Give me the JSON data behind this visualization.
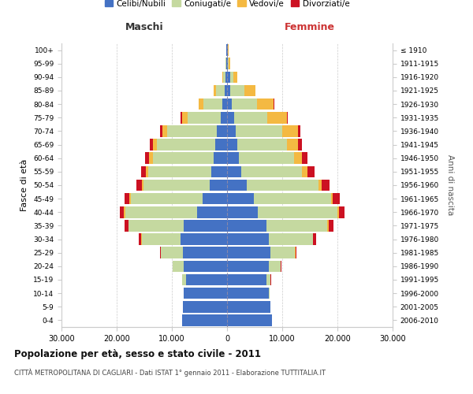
{
  "age_groups": [
    "0-4",
    "5-9",
    "10-14",
    "15-19",
    "20-24",
    "25-29",
    "30-34",
    "35-39",
    "40-44",
    "45-49",
    "50-54",
    "55-59",
    "60-64",
    "65-69",
    "70-74",
    "75-79",
    "80-84",
    "85-89",
    "90-94",
    "95-99",
    "100+"
  ],
  "birth_years": [
    "2006-2010",
    "2001-2005",
    "1996-2000",
    "1991-1995",
    "1986-1990",
    "1981-1985",
    "1976-1980",
    "1971-1975",
    "1966-1970",
    "1961-1965",
    "1956-1960",
    "1951-1955",
    "1946-1950",
    "1941-1945",
    "1936-1940",
    "1931-1935",
    "1926-1930",
    "1921-1925",
    "1916-1920",
    "1911-1915",
    "≤ 1910"
  ],
  "males": {
    "celibe": [
      8200,
      8000,
      7800,
      7500,
      7800,
      8000,
      8500,
      7800,
      5500,
      4500,
      3200,
      2800,
      2500,
      2200,
      1800,
      1200,
      800,
      500,
      300,
      150,
      100
    ],
    "coniugato": [
      10,
      30,
      100,
      600,
      2000,
      4000,
      7000,
      10000,
      13000,
      13000,
      12000,
      11500,
      11000,
      10500,
      9000,
      6000,
      3500,
      1500,
      400,
      100,
      50
    ],
    "vedovo": [
      1,
      2,
      5,
      10,
      30,
      50,
      80,
      120,
      150,
      200,
      300,
      400,
      600,
      700,
      900,
      1000,
      800,
      400,
      100,
      30,
      10
    ],
    "divorziato": [
      1,
      2,
      5,
      20,
      60,
      150,
      400,
      700,
      800,
      900,
      950,
      900,
      800,
      600,
      400,
      200,
      100,
      50,
      20,
      10,
      5
    ]
  },
  "females": {
    "nubile": [
      8100,
      7800,
      7500,
      7200,
      7500,
      7800,
      7500,
      7200,
      5500,
      4800,
      3500,
      2600,
      2200,
      1800,
      1500,
      1300,
      900,
      600,
      500,
      200,
      100
    ],
    "coniugata": [
      15,
      40,
      150,
      700,
      2200,
      4500,
      8000,
      11000,
      14500,
      14000,
      13000,
      11000,
      10000,
      9000,
      8500,
      6000,
      4500,
      2500,
      600,
      150,
      60
    ],
    "vedova": [
      1,
      2,
      5,
      15,
      30,
      60,
      100,
      180,
      250,
      400,
      700,
      1000,
      1400,
      2000,
      2800,
      3500,
      3000,
      2000,
      700,
      200,
      80
    ],
    "divorziata": [
      1,
      3,
      8,
      30,
      80,
      180,
      500,
      900,
      1100,
      1200,
      1300,
      1200,
      1000,
      700,
      500,
      250,
      150,
      80,
      30,
      10,
      5
    ]
  },
  "colors": {
    "celibe": "#4472C4",
    "coniugato": "#C5D9A0",
    "vedovo": "#F4B942",
    "divorziato": "#CC1122"
  },
  "xlim": 30000,
  "xlabel_left": "Maschi",
  "xlabel_right": "Femmine",
  "ylabel_left": "Fasce di età",
  "ylabel_right": "Anni di nascita",
  "title": "Popolazione per età, sesso e stato civile - 2011",
  "subtitle": "CITTÀ METROPOLITANA DI CAGLIARI - Dati ISTAT 1° gennaio 2011 - Elaborazione TUTTITALIA.IT",
  "legend_labels": [
    "Celibi/Nubili",
    "Coniugati/e",
    "Vedovi/e",
    "Divorziati/e"
  ],
  "background_color": "#ffffff",
  "grid_color": "#cccccc"
}
